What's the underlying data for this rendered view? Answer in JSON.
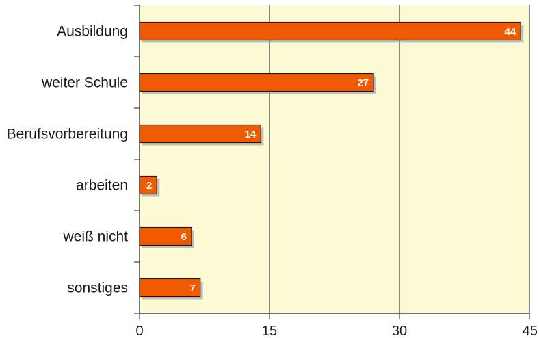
{
  "chart_data": {
    "type": "bar",
    "orientation": "horizontal",
    "categories": [
      "Ausbildung",
      "weiter Schule",
      "Berufsvorbereitung",
      "arbeiten",
      "weiß nicht",
      "sonstiges"
    ],
    "values": [
      44,
      27,
      14,
      2,
      6,
      7
    ],
    "title": "",
    "xlabel": "",
    "ylabel": "",
    "xlim": [
      0,
      45
    ],
    "xticks": [
      0,
      15,
      30,
      45
    ],
    "grid": "vertical lines at major ticks",
    "legend": "none",
    "data_labels": "inside bar end"
  },
  "colors": {
    "plot_background": "#fcfbd6",
    "bar_fill": "#f05a00",
    "bar_stroke": "#1a1a1a",
    "bar_shadow": "#9a9a9a",
    "grid": "#1a1a1a",
    "axis": "#1a1a1a",
    "text": "#1a1a1a",
    "data_label": "#ffffff"
  }
}
